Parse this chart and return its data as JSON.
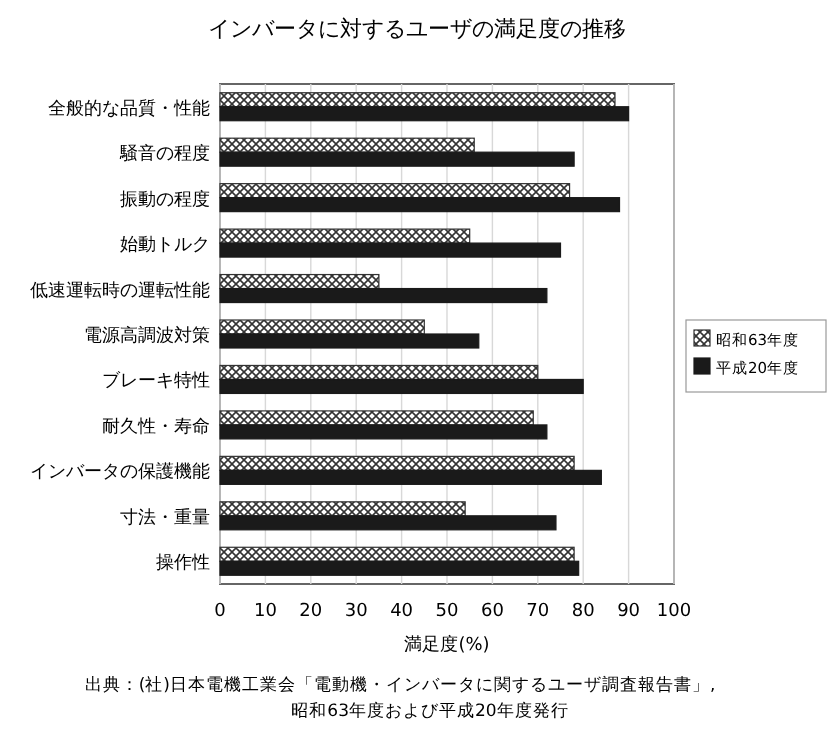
{
  "chart_data": {
    "type": "bar",
    "orientation": "horizontal",
    "title": "インバータに対するユーザの満足度の推移",
    "xlabel": "満足度(%)",
    "categories": [
      "全般的な品質・性能",
      "騒音の程度",
      "振動の程度",
      "始動トルク",
      "低速運転時の運転性能",
      "電源高調波対策",
      "ブレーキ特性",
      "耐久性・寿命",
      "インバータの保護機能",
      "寸法・重量",
      "操作性"
    ],
    "series": [
      {
        "name": "昭和63年度",
        "color": "#333333",
        "values": [
          87,
          56,
          77,
          55,
          35,
          45,
          70,
          69,
          78,
          54,
          78
        ]
      },
      {
        "name": "平成20年度",
        "color": "#1a1a1a",
        "values": [
          90,
          78,
          88,
          75,
          72,
          57,
          80,
          72,
          84,
          74,
          79
        ]
      }
    ],
    "xlim": [
      0,
      100
    ],
    "xticks": [
      0,
      10,
      20,
      30,
      40,
      50,
      60,
      70,
      80,
      90,
      100
    ],
    "grid": "x",
    "legend": "right",
    "annotations": [
      "出典：(社)日本電機工業会「電動機・インバータに関するユーザ調査報告書」,",
      "昭和63年度および平成20年度発行"
    ]
  }
}
